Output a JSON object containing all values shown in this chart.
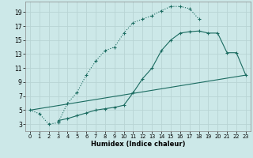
{
  "xlabel": "Humidex (Indice chaleur)",
  "ylabel": "",
  "bg_color": "#cce8e8",
  "grid_color": "#b8d4d4",
  "line_color": "#1a6b60",
  "xlim": [
    -0.5,
    23.5
  ],
  "ylim": [
    2.0,
    20.5
  ],
  "xticks": [
    0,
    1,
    2,
    3,
    4,
    5,
    6,
    7,
    8,
    9,
    10,
    11,
    12,
    13,
    14,
    15,
    16,
    17,
    18,
    19,
    20,
    21,
    22,
    23
  ],
  "yticks": [
    3,
    5,
    7,
    9,
    11,
    13,
    15,
    17,
    19
  ],
  "line1_x": [
    0,
    1,
    2,
    3,
    4,
    5,
    6,
    7,
    8,
    9,
    10,
    11,
    12,
    13,
    14,
    15,
    16,
    17,
    18
  ],
  "line1_y": [
    5.0,
    4.5,
    3.0,
    3.2,
    6.0,
    7.5,
    10.0,
    12.0,
    13.5,
    14.0,
    16.0,
    17.5,
    18.0,
    18.5,
    19.2,
    19.8,
    19.8,
    19.5,
    18.0
  ],
  "line2_x": [
    3,
    4,
    5,
    6,
    7,
    8,
    9,
    10,
    11,
    12,
    13,
    14,
    15,
    16,
    17,
    18,
    19,
    20,
    21,
    22,
    23
  ],
  "line2_y": [
    3.5,
    3.8,
    4.2,
    4.6,
    5.0,
    5.2,
    5.4,
    5.7,
    7.5,
    9.5,
    11.0,
    13.5,
    15.0,
    16.0,
    16.2,
    16.3,
    16.0,
    16.0,
    13.2,
    13.2,
    10.0
  ],
  "line3_x": [
    0,
    23
  ],
  "line3_y": [
    5.0,
    10.0
  ]
}
